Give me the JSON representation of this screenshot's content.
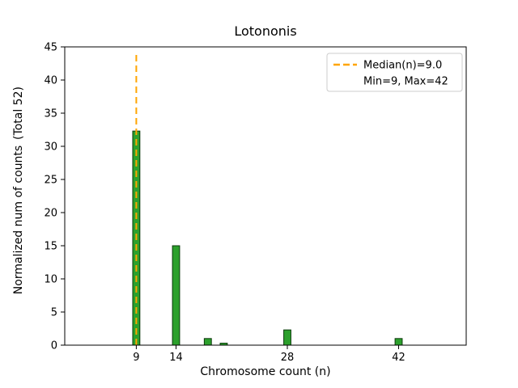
{
  "figure": {
    "background": "#ffffff",
    "axis_color": "#000000"
  },
  "chart_data": {
    "type": "bar",
    "title": "Lotononis",
    "xlabel": "Chromosome count (n)",
    "ylabel": "Normalized num of counts",
    "ylabel_secondary": "(Total 52)",
    "xlim": [
      0,
      50.5
    ],
    "ylim": [
      0,
      45
    ],
    "xticks": [
      9,
      14,
      28,
      42
    ],
    "yticks": [
      0,
      5,
      10,
      15,
      20,
      25,
      30,
      35,
      40,
      45
    ],
    "bar_width": 0.9,
    "bar_fill": "#2ca02c",
    "bar_edge": "#0b3a0b",
    "bars": [
      {
        "x": 9,
        "height": 32.3
      },
      {
        "x": 14,
        "height": 15.0
      },
      {
        "x": 18,
        "height": 1.0
      },
      {
        "x": 20,
        "height": 0.3
      },
      {
        "x": 28,
        "height": 2.3
      },
      {
        "x": 42,
        "height": 1.0
      }
    ],
    "median_line": {
      "x": 9,
      "top": 44.3,
      "color": "#ffa500",
      "label": "Median(n)=9.0"
    },
    "legend": {
      "border_color": "#cccccc",
      "entries": [
        {
          "sample": "dashed-line",
          "label": "Median(n)=9.0"
        },
        {
          "sample": "none",
          "label": "Min=9, Max=42"
        }
      ],
      "position": "upper right"
    },
    "grid": false
  }
}
